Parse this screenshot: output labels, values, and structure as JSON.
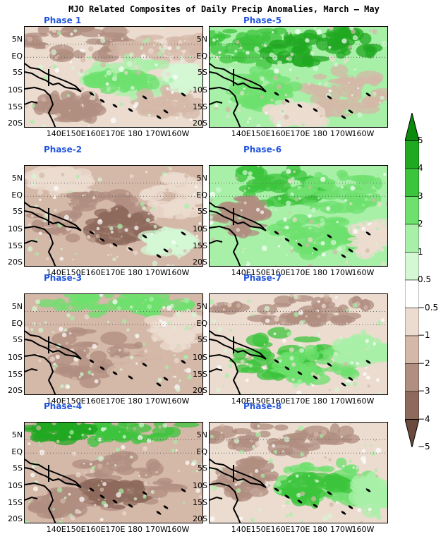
{
  "title": "MJO Related Composites of Daily Precip Anomalies, March – May",
  "panels": [
    {
      "label": "Phase 1",
      "pattern": "dry-north-wet-center"
    },
    {
      "label": "Phase-5",
      "pattern": "wet-north-dry-southeast"
    },
    {
      "label": "Phase-2",
      "pattern": "dry"
    },
    {
      "label": "Phase-6",
      "pattern": "wet-north"
    },
    {
      "label": "Phase-3",
      "pattern": "wet-north-dry-south"
    },
    {
      "label": "Phase-7",
      "pattern": "wet-south"
    },
    {
      "label": "Phase-4",
      "pattern": "wet-north-dry-south-strong"
    },
    {
      "label": "Phase-8",
      "pattern": "dry-north-wet-southeast"
    }
  ],
  "axes": {
    "y_ticks": [
      "5N",
      "EQ",
      "5S",
      "10S",
      "15S",
      "20S"
    ],
    "x_ticks": [
      "140E",
      "150E",
      "160E",
      "170E",
      "180",
      "170W",
      "160W"
    ]
  },
  "colorbar": {
    "labels": [
      "5",
      "4",
      "3",
      "2",
      "1",
      "0.5",
      "−0.5",
      "−1",
      "−2",
      "−3",
      "−4",
      "−5"
    ],
    "colors": [
      "#0a8a0a",
      "#20a820",
      "#3cc43c",
      "#6ee06e",
      "#a8f0a8",
      "#d4f7d4",
      "#ffffff",
      "#ecdcd0",
      "#d4b8a8",
      "#b08e80",
      "#8e6a5c",
      "#6a4a3e"
    ]
  }
}
